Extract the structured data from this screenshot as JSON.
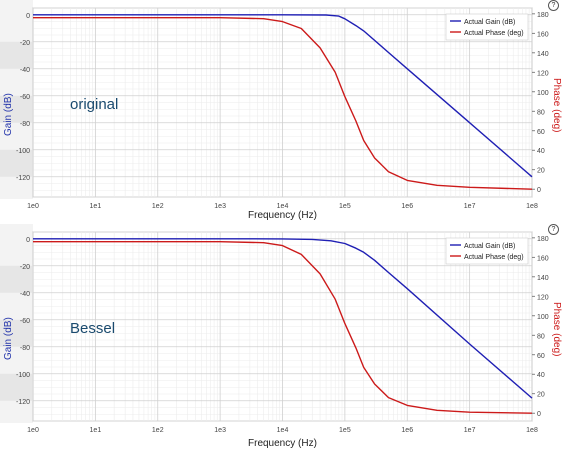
{
  "chart_data": [
    {
      "type": "line",
      "annotation": "original",
      "xlabel": "Frequency (Hz)",
      "ylabel": "Gain (dB)",
      "y2label": "Phase (deg)",
      "xscale": "log",
      "xlim": [
        1,
        100000000
      ],
      "ylim": [
        -135,
        5
      ],
      "y2lim": [
        -8,
        186
      ],
      "x_ticks": [
        "1e0",
        "1e1",
        "1e2",
        "1e3",
        "1e4",
        "1e5",
        "1e6",
        "1e7",
        "1e8"
      ],
      "y_ticks": [
        0,
        -20,
        -40,
        -60,
        -80,
        -100,
        -120
      ],
      "y2_ticks": [
        0,
        20,
        40,
        60,
        80,
        100,
        120,
        140,
        160,
        180
      ],
      "legend": {
        "position": "top-right",
        "entries": [
          "Actual Gain (dB)",
          "Actual Phase (deg)"
        ]
      },
      "grid": true,
      "series": [
        {
          "name": "Actual Gain (dB)",
          "axis": "left",
          "color": "#1f1fb4",
          "x": [
            1,
            10,
            100,
            1000,
            10000,
            50000,
            80000,
            100000,
            150000,
            200000,
            500000,
            1000000,
            10000000,
            100000000
          ],
          "values": [
            0,
            0,
            0,
            0,
            0,
            -0.2,
            -1,
            -3,
            -8,
            -12,
            -28,
            -40,
            -80,
            -120
          ]
        },
        {
          "name": "Actual Phase (deg)",
          "axis": "right",
          "color": "#cc1a1a",
          "x": [
            1,
            10,
            100,
            1000,
            5000,
            10000,
            20000,
            40000,
            70000,
            100000,
            150000,
            200000,
            300000,
            500000,
            1000000,
            3000000,
            10000000,
            100000000
          ],
          "values": [
            176,
            176,
            176,
            176,
            175,
            172,
            165,
            145,
            120,
            95,
            70,
            50,
            32,
            18,
            9,
            4,
            2,
            0
          ]
        }
      ]
    },
    {
      "type": "line",
      "annotation": "Bessel",
      "xlabel": "Frequency (Hz)",
      "ylabel": "Gain (dB)",
      "y2label": "Phase (deg)",
      "xscale": "log",
      "xlim": [
        1,
        100000000
      ],
      "ylim": [
        -135,
        5
      ],
      "y2lim": [
        -8,
        186
      ],
      "x_ticks": [
        "1e0",
        "1e1",
        "1e2",
        "1e3",
        "1e4",
        "1e5",
        "1e6",
        "1e7",
        "1e8"
      ],
      "y_ticks": [
        0,
        -20,
        -40,
        -60,
        -80,
        -100,
        -120
      ],
      "y2_ticks": [
        0,
        20,
        40,
        60,
        80,
        100,
        120,
        140,
        160,
        180
      ],
      "legend": {
        "position": "top-right",
        "entries": [
          "Actual Gain (dB)",
          "Actual Phase (deg)"
        ]
      },
      "grid": true,
      "series": [
        {
          "name": "Actual Gain (dB)",
          "axis": "left",
          "color": "#1f1fb4",
          "x": [
            1,
            10,
            100,
            1000,
            10000,
            30000,
            60000,
            100000,
            150000,
            200000,
            300000,
            500000,
            1000000,
            10000000,
            100000000
          ],
          "values": [
            0,
            0,
            0,
            0,
            -0.1,
            -0.5,
            -1.5,
            -3.5,
            -7,
            -10,
            -16,
            -25,
            -37,
            -78,
            -118
          ]
        },
        {
          "name": "Actual Phase (deg)",
          "axis": "right",
          "color": "#cc1a1a",
          "x": [
            1,
            10,
            100,
            1000,
            5000,
            10000,
            20000,
            40000,
            70000,
            100000,
            150000,
            200000,
            300000,
            500000,
            1000000,
            3000000,
            10000000,
            100000000
          ],
          "values": [
            176,
            176,
            176,
            176,
            175,
            172,
            163,
            143,
            117,
            92,
            67,
            47,
            30,
            16,
            8,
            3,
            1,
            0
          ]
        }
      ]
    }
  ],
  "help_glyph": "?"
}
